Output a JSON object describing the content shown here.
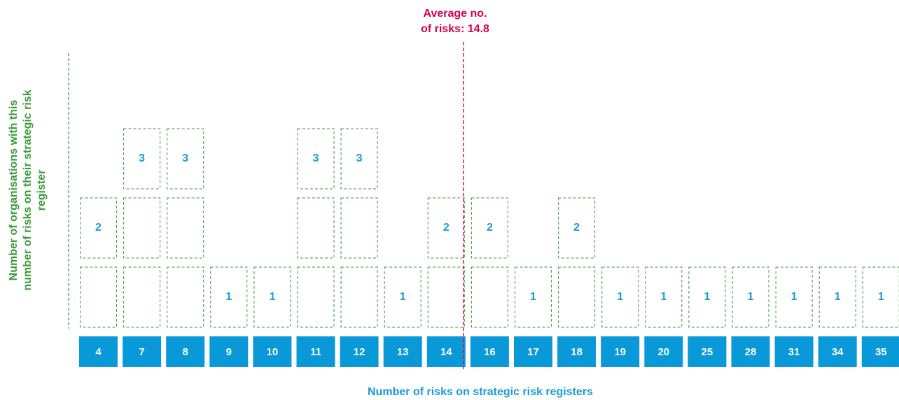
{
  "chart_data": {
    "type": "bar",
    "categories": [
      "4",
      "7",
      "8",
      "9",
      "10",
      "11",
      "12",
      "13",
      "14",
      "16",
      "17",
      "18",
      "19",
      "20",
      "25",
      "28",
      "31",
      "34",
      "35"
    ],
    "values": [
      2,
      3,
      3,
      1,
      1,
      3,
      3,
      1,
      2,
      2,
      1,
      2,
      1,
      1,
      1,
      1,
      1,
      1,
      1
    ],
    "xlabel": "Number of risks on strategic risk registers",
    "ylabel": "Number of organisations with this number of risks on their strategic risk register",
    "ylim": [
      0,
      3
    ],
    "average": 14.8,
    "average_label_line1": "Average no.",
    "average_label_line2": "of risks: 14.8",
    "colors": {
      "category_box": "#0a99d8",
      "value_text": "#1a9ad6",
      "cell_border": "#3a9a3a",
      "average_line": "#d6004f"
    },
    "grid": false,
    "legend": "none"
  }
}
